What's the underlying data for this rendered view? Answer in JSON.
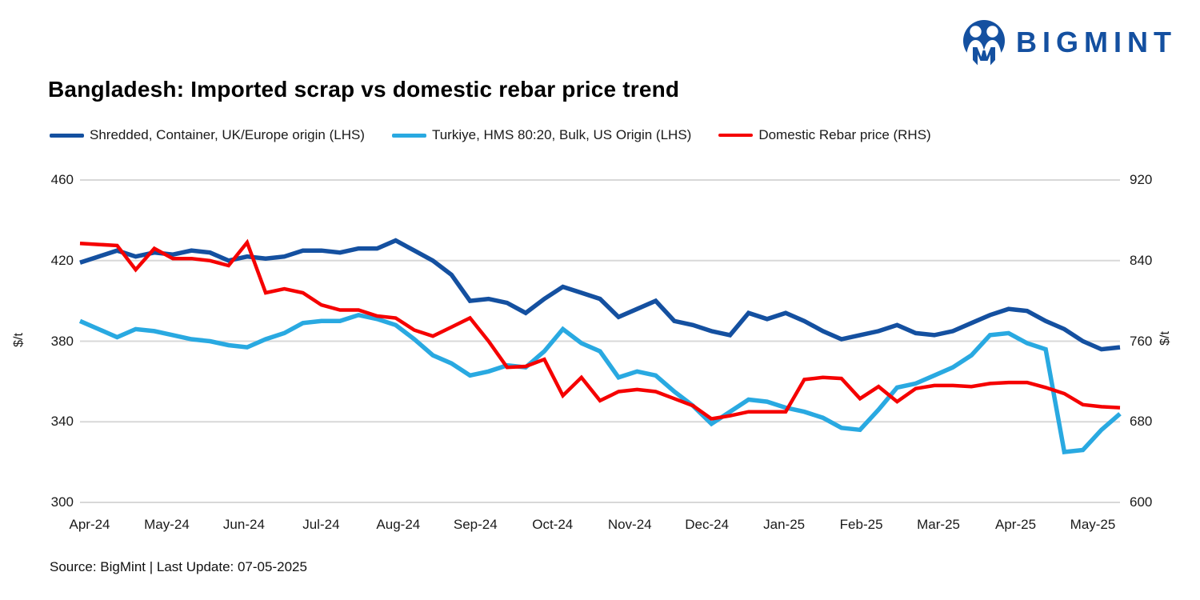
{
  "logo": {
    "text": "BIGMINT",
    "color": "#1450a0"
  },
  "title": "Bangladesh: Imported scrap vs domestic rebar price trend",
  "source": "Source: BigMint | Last Update: 07-05-2025",
  "chart_data": {
    "type": "line",
    "title": "Bangladesh: Imported scrap vs domestic rebar price trend",
    "grid": true,
    "grid_color": "#d8d8d8",
    "legend_position": "top",
    "x_tick_labels": [
      "Apr-24",
      "May-24",
      "Jun-24",
      "Jul-24",
      "Aug-24",
      "Sep-24",
      "Oct-24",
      "Nov-24",
      "Dec-24",
      "Jan-25",
      "Feb-25",
      "Mar-25",
      "Apr-25",
      "May-25"
    ],
    "left_axis": {
      "label": "$/t",
      "ticks": [
        460,
        420,
        380,
        340,
        300
      ],
      "min": 300,
      "max": 460
    },
    "right_axis": {
      "label": "$/t",
      "ticks": [
        920,
        840,
        760,
        680,
        600
      ],
      "min": 600,
      "max": 920
    },
    "series": [
      {
        "name": "Shredded, Container, UK/Europe origin (LHS)",
        "axis": "left",
        "color": "#1450a0",
        "stroke_width": 5.5,
        "values": [
          419,
          422,
          425,
          422,
          424,
          423,
          425,
          424,
          420,
          422,
          421,
          422,
          425,
          425,
          424,
          426,
          426,
          430,
          425,
          420,
          413,
          400,
          401,
          399,
          394,
          401,
          407,
          404,
          401,
          392,
          396,
          400,
          390,
          388,
          385,
          383,
          394,
          391,
          394,
          390,
          385,
          381,
          383,
          385,
          388,
          384,
          383,
          385,
          389,
          393,
          396,
          395,
          390,
          386,
          380,
          376,
          377
        ]
      },
      {
        "name": "Turkiye, HMS 80:20, Bulk, US Origin (LHS)",
        "axis": "left",
        "color": "#29a9e1",
        "stroke_width": 5.5,
        "values": [
          390,
          386,
          382,
          386,
          385,
          383,
          381,
          380,
          378,
          377,
          381,
          384,
          389,
          390,
          390,
          393,
          391,
          388,
          381,
          373,
          369,
          363,
          365,
          368,
          367,
          375,
          386,
          379,
          375,
          362,
          365,
          363,
          355,
          348,
          339,
          345,
          351,
          350,
          347,
          345,
          342,
          337,
          336,
          346,
          357,
          359,
          363,
          367,
          373,
          383,
          384,
          379,
          376,
          325,
          326,
          336,
          344
        ]
      },
      {
        "name": "Domestic Rebar price (RHS)",
        "axis": "right",
        "color": "#f50000",
        "stroke_width": 4.5,
        "values": [
          857,
          856,
          855,
          831,
          852,
          842,
          842,
          840,
          835,
          858,
          808,
          812,
          808,
          796,
          791,
          791,
          785,
          783,
          771,
          765,
          774,
          783,
          760,
          734,
          735,
          742,
          706,
          724,
          701,
          710,
          712,
          710,
          703,
          696,
          683,
          686,
          690,
          690,
          690,
          722,
          724,
          723,
          703,
          715,
          700,
          713,
          716,
          716,
          715,
          718,
          719,
          719,
          714,
          708,
          697,
          695,
          694
        ]
      }
    ]
  }
}
